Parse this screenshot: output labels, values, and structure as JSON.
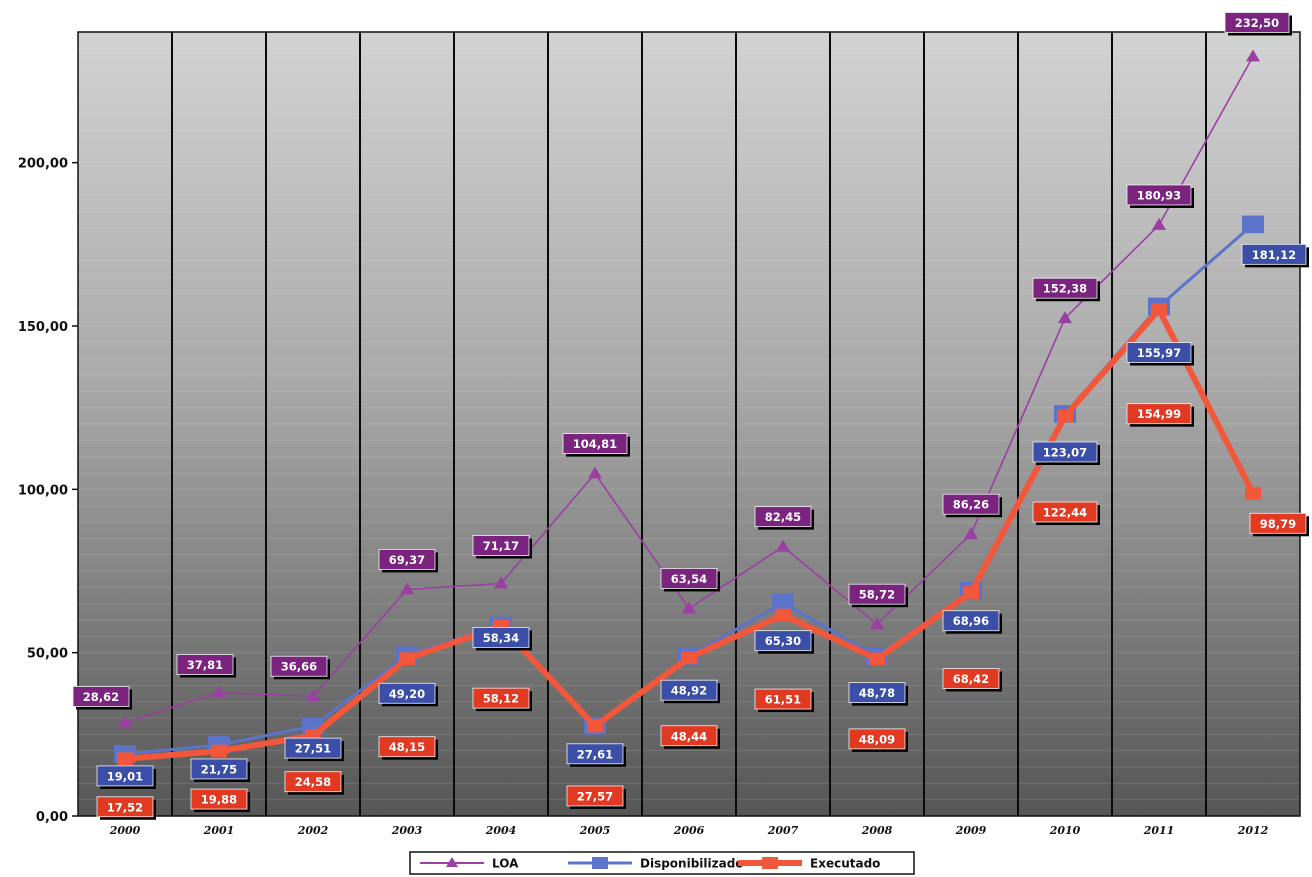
{
  "chart_data": {
    "type": "line",
    "title": "",
    "x": [
      "2000",
      "2001",
      "2002",
      "2003",
      "2004",
      "2005",
      "2006",
      "2007",
      "2008",
      "2009",
      "2010",
      "2011",
      "2012"
    ],
    "ylim": [
      0,
      240
    ],
    "yticks": [
      0,
      50,
      100,
      150,
      200
    ],
    "ytick_labels": [
      "0,00",
      "50,00",
      "100,00",
      "150,00",
      "200,00"
    ],
    "grid": true,
    "legend": "bottom",
    "series": [
      {
        "name": "LOA",
        "color": "#9b3fa3",
        "label_color": "#7a2480",
        "marker": "triangle",
        "values": [
          28.62,
          37.81,
          36.66,
          69.37,
          71.17,
          104.81,
          63.54,
          82.45,
          58.72,
          86.26,
          152.38,
          180.93,
          232.5
        ],
        "labels": [
          "28,62",
          "37,81",
          "36,66",
          "69,37",
          "71,17",
          "104,81",
          "63,54",
          "82,45",
          "58,72",
          "86,26",
          "152,38",
          "180,93",
          "232,50"
        ]
      },
      {
        "name": "Disponibilizado",
        "color": "#5b74c9",
        "label_color": "#3b4fa8",
        "marker": "square",
        "values": [
          19.01,
          21.75,
          27.51,
          49.2,
          58.34,
          27.61,
          48.92,
          65.3,
          48.78,
          68.96,
          123.07,
          155.97,
          181.12
        ],
        "labels": [
          "19,01",
          "21,75",
          "27,51",
          "49,20",
          "58,34",
          "27,61",
          "48,92",
          "65,30",
          "48,78",
          "68,96",
          "123,07",
          "155,97",
          "181,12"
        ]
      },
      {
        "name": "Executado",
        "color": "#f2573b",
        "label_color": "#e23a22",
        "marker": "square",
        "values": [
          17.52,
          19.88,
          24.58,
          48.15,
          58.12,
          27.57,
          48.44,
          61.51,
          48.09,
          68.42,
          122.44,
          154.99,
          98.79
        ],
        "labels": [
          "17,52",
          "19,88",
          "24,58",
          "48,15",
          "58,12",
          "27,57",
          "48,44",
          "61,51",
          "48,09",
          "68,42",
          "122,44",
          "154,99",
          "98,79"
        ]
      }
    ]
  }
}
